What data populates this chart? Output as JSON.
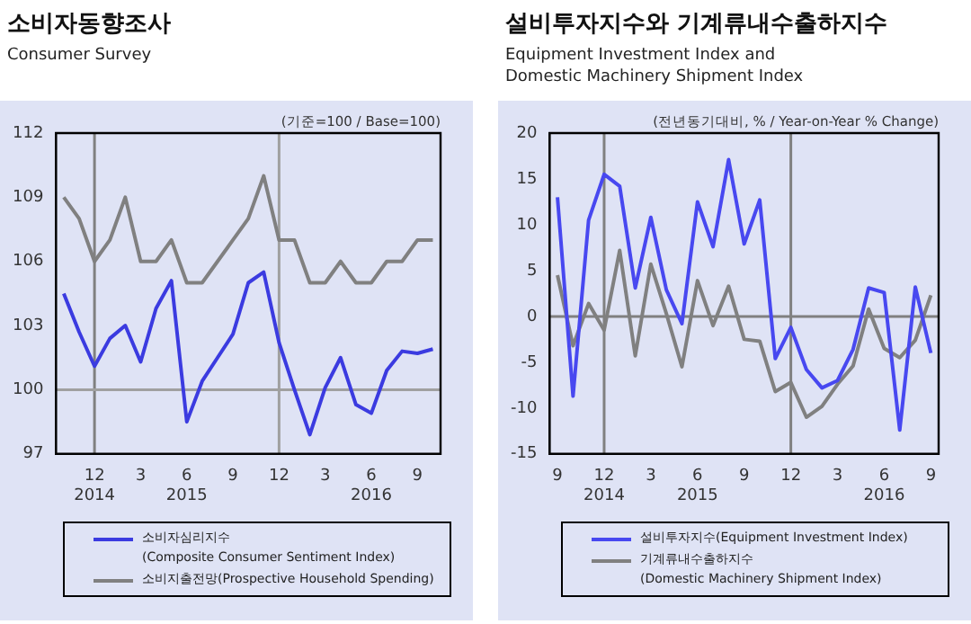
{
  "chart_data": [
    {
      "type": "line",
      "title": "소비자동향조사",
      "subtitle": "Consumer Survey",
      "annotations": [
        "(기준=100 / Base=100)"
      ],
      "x": [
        "2014-10",
        "2014-11",
        "2014-12",
        "2015-01",
        "2015-02",
        "2015-03",
        "2015-04",
        "2015-05",
        "2015-06",
        "2015-07",
        "2015-08",
        "2015-09",
        "2015-10",
        "2015-11",
        "2015-12",
        "2016-01",
        "2016-02",
        "2016-03",
        "2016-04",
        "2016-05",
        "2016-06",
        "2016-07",
        "2016-08",
        "2016-09",
        "2016-10"
      ],
      "series": [
        {
          "name": "소비자심리지수\n(Composite Consumer Sentiment Index)",
          "color": "#3b3be0",
          "values": [
            104.5,
            102.7,
            101.1,
            102.4,
            103,
            101.3,
            103.8,
            105.1,
            98.5,
            100.4,
            101.5,
            102.6,
            105,
            105.5,
            102.2,
            100,
            97.9,
            100.1,
            101.5,
            99.3,
            98.9,
            100.9,
            101.8,
            101.7,
            101.9
          ]
        },
        {
          "name": "소비지출전망(Prospective Household Spending)",
          "color": "#808080",
          "values": [
            109,
            108,
            106,
            107,
            109,
            106,
            106,
            107,
            105,
            105,
            106,
            107,
            108,
            110,
            107,
            107,
            105,
            105,
            106,
            105,
            105,
            106,
            106,
            107,
            107
          ]
        }
      ],
      "xlim": [
        "2014-09-16",
        "2016-10-16"
      ],
      "xticks": [
        {
          "value": "2014-12",
          "label": "12\n2014"
        },
        {
          "value": "2015-03",
          "label": "3"
        },
        {
          "value": "2015-06",
          "label": "6\n2015"
        },
        {
          "value": "2015-09",
          "label": "9"
        },
        {
          "value": "2015-12",
          "label": "12"
        },
        {
          "value": "2016-03",
          "label": "3"
        },
        {
          "value": "2016-06",
          "label": "6\n2016"
        },
        {
          "value": "2016-09",
          "label": "9"
        }
      ],
      "ylim": [
        97,
        112
      ],
      "yticks": [
        97,
        100,
        103,
        106,
        109,
        112
      ],
      "ref_lines": [
        {
          "axis": "x",
          "value": "2014-12",
          "color": "#808080"
        },
        {
          "axis": "x",
          "value": "2015-12",
          "color": "#a0a0a0"
        },
        {
          "axis": "y",
          "value": 100,
          "color": "#a0a0a0"
        }
      ],
      "legend": "bottom",
      "marker": "none",
      "line_style": "solid"
    },
    {
      "type": "line",
      "title": "설비투자지수와  기계류내수출하지수",
      "subtitle": "Equipment Investment Index and\nDomestic Machinery Shipment Index",
      "annotations": [
        "(전년동기대비, % / Year-on-Year % Change)"
      ],
      "x": [
        "2014-09",
        "2014-10",
        "2014-11",
        "2014-12",
        "2015-01",
        "2015-02",
        "2015-03",
        "2015-04",
        "2015-05",
        "2015-06",
        "2015-07",
        "2015-08",
        "2015-09",
        "2015-10",
        "2015-11",
        "2015-12",
        "2016-01",
        "2016-02",
        "2016-03",
        "2016-04",
        "2016-05",
        "2016-06",
        "2016-07",
        "2016-08",
        "2016-09"
      ],
      "series": [
        {
          "name": "설비투자지수(Equipment Investment Index)",
          "color": "#4848f0",
          "values": [
            13.0,
            -8.7,
            10.5,
            15.5,
            14.2,
            3.1,
            10.8,
            2.9,
            -0.8,
            12.5,
            7.6,
            17.1,
            7.9,
            12.7,
            -4.6,
            -1.2,
            -5.8,
            -7.8,
            -7.0,
            -3.6,
            3.1,
            2.6,
            -12.4,
            3.2,
            -4.0
          ]
        },
        {
          "name": "기계류내수출하지수\n(Domestic Machinery Shipment Index)",
          "color": "#808080",
          "values": [
            4.5,
            -3.2,
            1.4,
            -1.5,
            7.2,
            -4.3,
            5.7,
            0.3,
            -5.5,
            3.9,
            -1.0,
            3.3,
            -2.5,
            -2.7,
            -8.2,
            -7.2,
            -11.0,
            -9.8,
            -7.4,
            -5.4,
            0.8,
            -3.5,
            -4.5,
            -2.6,
            2.3
          ]
        }
      ],
      "xlim": [
        "2014-08-16",
        "2016-09-16"
      ],
      "xticks": [
        {
          "value": "2014-09",
          "label": "9"
        },
        {
          "value": "2014-12",
          "label": "12\n2014"
        },
        {
          "value": "2015-03",
          "label": "3"
        },
        {
          "value": "2015-06",
          "label": "6\n2015"
        },
        {
          "value": "2015-09",
          "label": "9"
        },
        {
          "value": "2015-12",
          "label": "12"
        },
        {
          "value": "2016-03",
          "label": "3"
        },
        {
          "value": "2016-06",
          "label": "6\n2016"
        },
        {
          "value": "2016-09",
          "label": "9"
        }
      ],
      "ylim": [
        -15,
        20
      ],
      "yticks": [
        -15,
        -10,
        -5,
        0,
        5,
        10,
        15,
        20
      ],
      "ref_lines": [
        {
          "axis": "x",
          "value": "2014-12",
          "color": "#808080"
        },
        {
          "axis": "x",
          "value": "2015-12",
          "color": "#808080"
        },
        {
          "axis": "y",
          "value": 0,
          "color": "#808080"
        }
      ],
      "legend": "bottom",
      "marker": "none",
      "line_style": "solid"
    }
  ]
}
